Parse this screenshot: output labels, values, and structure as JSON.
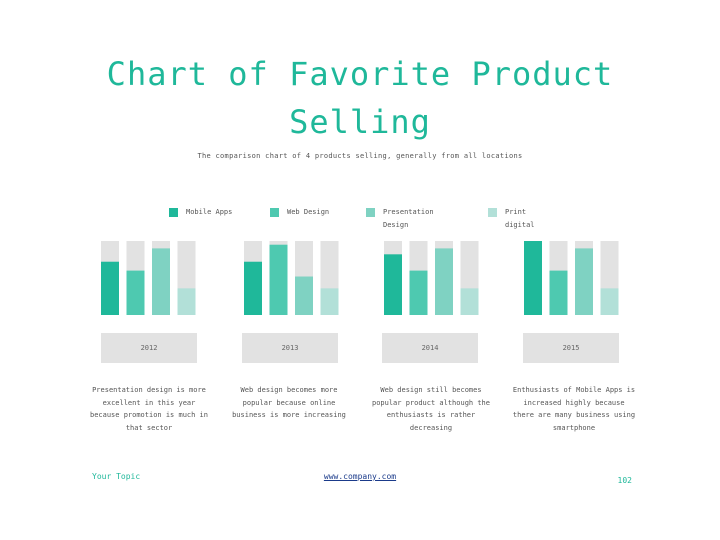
{
  "title": "Chart of Favorite Product Selling",
  "subtitle": "The comparison chart of 4 products selling, generally from all locations",
  "colors": {
    "mobile_apps": "#1fb89a",
    "web_design": "#4ec9b0",
    "presentation_design": "#7fd2c2",
    "print_digital": "#b2e0d8",
    "bar_background": "#e2e2e2",
    "accent": "#1fb89a"
  },
  "chart_data": {
    "type": "bar",
    "title": "Chart of Favorite Product Selling",
    "subtitle": "The comparison chart of 4 products selling, generally from all locations",
    "categories": [
      "2012",
      "2013",
      "2014",
      "2015"
    ],
    "ylim": [
      0,
      100
    ],
    "grid": false,
    "legend_position": "top",
    "series": [
      {
        "name": "Mobile Apps",
        "values": [
          72,
          72,
          82,
          100
        ]
      },
      {
        "name": "Web Design",
        "values": [
          60,
          95,
          60,
          60
        ]
      },
      {
        "name": "Presentation Design",
        "values": [
          90,
          52,
          90,
          90
        ]
      },
      {
        "name": "Print digital",
        "values": [
          36,
          36,
          36,
          36
        ]
      }
    ]
  },
  "legend": [
    {
      "label": "Mobile Apps"
    },
    {
      "label": "Web Design"
    },
    {
      "label": "Presentation Design"
    },
    {
      "label": "Print digital"
    }
  ],
  "years": [
    "2012",
    "2013",
    "2014",
    "2015"
  ],
  "descriptions": [
    "Presentation design is more excellent in this year because promotion is much in that sector",
    "Web design becomes more popular because online business is more increasing",
    "Web design still becomes popular product although the enthusiasts is rather decreasing",
    "Enthusiasts of Mobile Apps is increased highly because there are many business using smartphone"
  ],
  "footer": {
    "topic": "Your Topic",
    "link": "www.company.com",
    "page": "102"
  }
}
